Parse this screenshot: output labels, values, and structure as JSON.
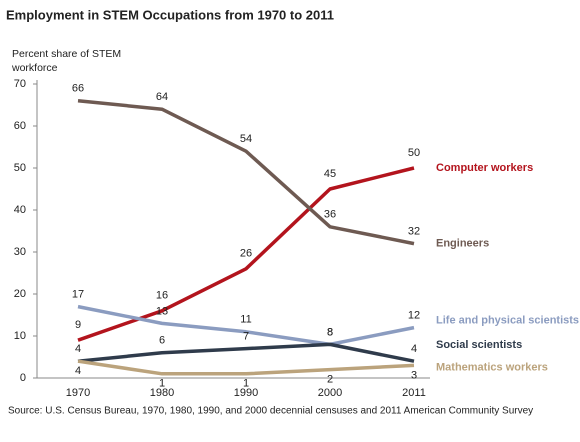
{
  "chart_data": {
    "type": "line",
    "title": "Employment in STEM Occupations from 1970  to 2011",
    "y_label": "Percent share of STEM workforce",
    "source": "Source: U.S. Census Bureau, 1970, 1980, 1990, and 2000 decennial censuses and 2011 American Community Survey",
    "categories": [
      "1970",
      "1980",
      "1990",
      "2000",
      "2011"
    ],
    "ylim": [
      0,
      70
    ],
    "yticks": [
      0,
      10,
      20,
      30,
      40,
      50,
      60,
      70
    ],
    "grid": false,
    "series": [
      {
        "name": "Computer workers",
        "color": "#b3141d",
        "values": [
          9,
          16,
          26,
          45,
          50
        ]
      },
      {
        "name": "Engineers",
        "color": "#6e5a52",
        "values": [
          66,
          64,
          54,
          36,
          32
        ]
      },
      {
        "name": "Life and physical scientists",
        "color": "#8b9cc0",
        "values": [
          17,
          13,
          11,
          8,
          12
        ]
      },
      {
        "name": "Social scientists",
        "color": "#2f3b4b",
        "values": [
          4,
          6,
          7,
          8,
          4
        ]
      },
      {
        "name": "Mathematics workers",
        "color": "#bba37c",
        "values": [
          4,
          1,
          1,
          2,
          3
        ]
      }
    ]
  }
}
